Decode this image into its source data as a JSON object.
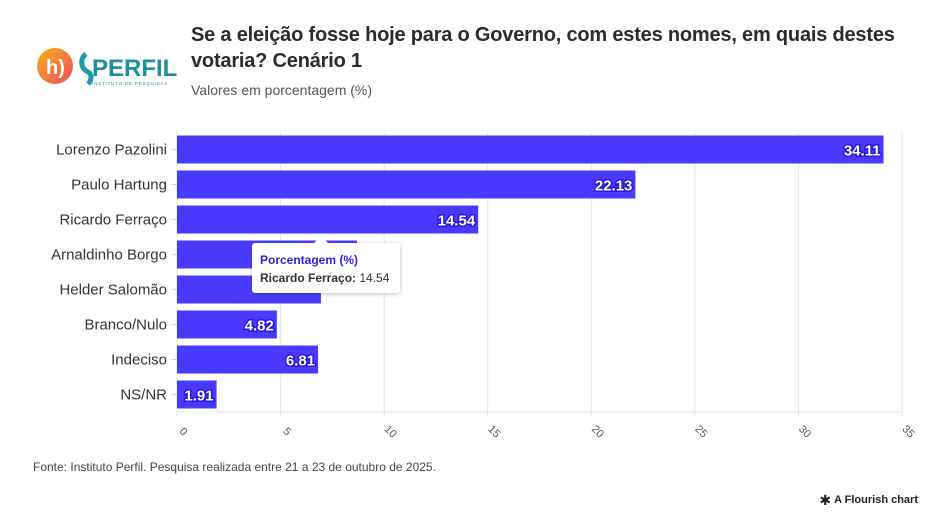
{
  "header": {
    "title": "Se a eleição fosse hoje para o Governo, com estes nomes, em quais destes votaria? Cenário 1",
    "subtitle": "Valores em porcentagem (%)",
    "logo": {
      "brand_text": "PERFIL",
      "tagline": "INSTITUTO DE PESQUISAS",
      "icon": "h-logo-icon"
    }
  },
  "colors": {
    "bar": "#4a3aff",
    "label_outline": "#2a16e0",
    "tooltip_title": "#2f1fe0"
  },
  "chart_data": {
    "type": "bar",
    "orientation": "horizontal",
    "title": "Se a eleição fosse hoje para o Governo, com estes nomes, em quais destes votaria? Cenário 1",
    "subtitle": "Valores em porcentagem (%)",
    "xlabel": "",
    "ylabel": "",
    "series_name": "Porcentagem (%)",
    "categories": [
      "Lorenzo Pazolini",
      "Paulo Hartung",
      "Ricardo Ferraço",
      "Arnaldinho Borgo",
      "Helder Salomão",
      "Branco/Nulo",
      "Indeciso",
      "NS/NR"
    ],
    "values": [
      34.11,
      22.13,
      14.54,
      8.69,
      6.95,
      4.82,
      6.81,
      1.91
    ],
    "value_labels": [
      "34.11",
      "22.13",
      "14.54",
      "",
      "",
      "4.82",
      "6.81",
      "1.91"
    ],
    "xlim": [
      0,
      35
    ],
    "xticks": [
      0,
      5,
      10,
      15,
      20,
      25,
      30,
      35
    ],
    "grid": true,
    "legend": "none"
  },
  "tooltip": {
    "title": "Porcentagem (%)",
    "label": "Ricardo Ferraço:",
    "value": "14.54"
  },
  "footer": {
    "source": "Fonte: Instituto Perfil. Pesquisa realizada entre 21 a 23 de outubro de 2025.",
    "credit": "A Flourish chart"
  }
}
